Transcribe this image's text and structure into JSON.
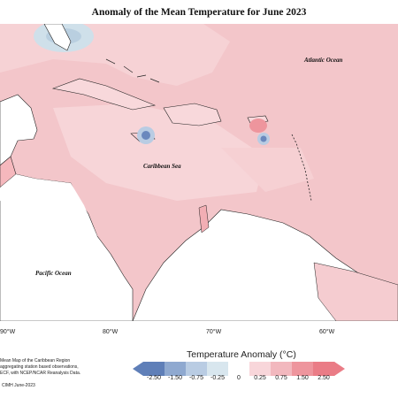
{
  "title": "Anomaly of the Mean Temperature for June 2023",
  "map": {
    "labels": {
      "atlantic": "Atlantic Ocean",
      "caribbean": "Caribbean Sea",
      "pacific": "Pacific Ocean"
    },
    "longitude_ticks": [
      "90°W",
      "80°W",
      "70°W",
      "60°W"
    ]
  },
  "notes": {
    "line1": "Mean Map of the Caribbean Region",
    "line2": "aggregating station based observations,",
    "line3": "ECF, with NCEP/NCAR Reanalysis Data."
  },
  "legend": {
    "title": "Temperature Anomaly (°C)",
    "ticks": [
      "-2.50",
      "-1.50",
      "-0.75",
      "-0.25",
      "0",
      "0.25",
      "0.75",
      "1.50",
      "2.50"
    ],
    "colors": [
      "#5f7fb8",
      "#8fa9d0",
      "#b9cce3",
      "#d8e6ee",
      "#ffffff",
      "#f8d6da",
      "#f2b8be",
      "#ee959d",
      "#ea7c86"
    ],
    "land_color": "#ffffff",
    "bg_warm_color": "#f2c4c8"
  },
  "footer": "CIMH June-2023"
}
